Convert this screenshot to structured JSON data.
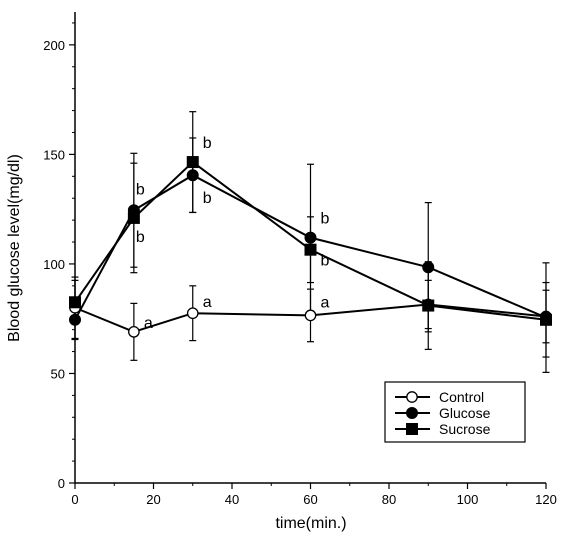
{
  "chart_data": {
    "type": "line",
    "xlabel": "time(min.)",
    "ylabel": "Blood glucose level(mg/dl)",
    "xlim": [
      0,
      120
    ],
    "ylim": [
      0,
      215
    ],
    "xticks": [
      "0",
      "20",
      "40",
      "60",
      "80",
      "100",
      "120"
    ],
    "yticks": [
      "0",
      "50",
      "100",
      "150",
      "200"
    ],
    "xtick_values": [
      0,
      20,
      40,
      60,
      80,
      100,
      120
    ],
    "ytick_values": [
      0,
      50,
      100,
      150,
      200
    ],
    "grid": false,
    "legend_position": "bottom-right",
    "series": [
      {
        "name": "Control",
        "marker": "open-circle",
        "x": [
          0,
          15,
          30,
          60,
          90,
          120
        ],
        "y": [
          80,
          69,
          77.5,
          76.5,
          81.5,
          76
        ],
        "err": [
          14,
          13,
          12.5,
          12,
          11,
          12
        ]
      },
      {
        "name": "Glucose",
        "marker": "filled-circle",
        "x": [
          0,
          15,
          30,
          60,
          90,
          120
        ],
        "y": [
          74.5,
          124.5,
          140.5,
          112,
          98.5,
          75.5
        ],
        "err": [
          9,
          26,
          17,
          33.5,
          29.5,
          25
        ]
      },
      {
        "name": "Sucrose",
        "marker": "filled-square",
        "x": [
          0,
          15,
          30,
          60,
          90,
          120
        ],
        "y": [
          82.5,
          121,
          146.5,
          106.5,
          81,
          74.5
        ],
        "err": [
          10,
          25,
          23,
          15,
          20,
          17
        ]
      }
    ],
    "annotations": [
      {
        "text": "a",
        "x": 15,
        "y": 69,
        "dx": 10,
        "dy": -4
      },
      {
        "text": "a",
        "x": 30,
        "y": 77.5,
        "dx": 10,
        "dy": -6
      },
      {
        "text": "a",
        "x": 60,
        "y": 76.5,
        "dx": 10,
        "dy": -8
      },
      {
        "text": "b",
        "x": 15,
        "y": 124.5,
        "dx": 2,
        "dy": -16
      },
      {
        "text": "b",
        "x": 15,
        "y": 121,
        "dx": 2,
        "dy": 24
      },
      {
        "text": "b",
        "x": 30,
        "y": 146.5,
        "dx": 10,
        "dy": -14
      },
      {
        "text": "b",
        "x": 30,
        "y": 140.5,
        "dx": 10,
        "dy": 28
      },
      {
        "text": "b",
        "x": 60,
        "y": 112,
        "dx": 10,
        "dy": -14
      },
      {
        "text": "b",
        "x": 60,
        "y": 106.5,
        "dx": 10,
        "dy": 16
      }
    ]
  }
}
